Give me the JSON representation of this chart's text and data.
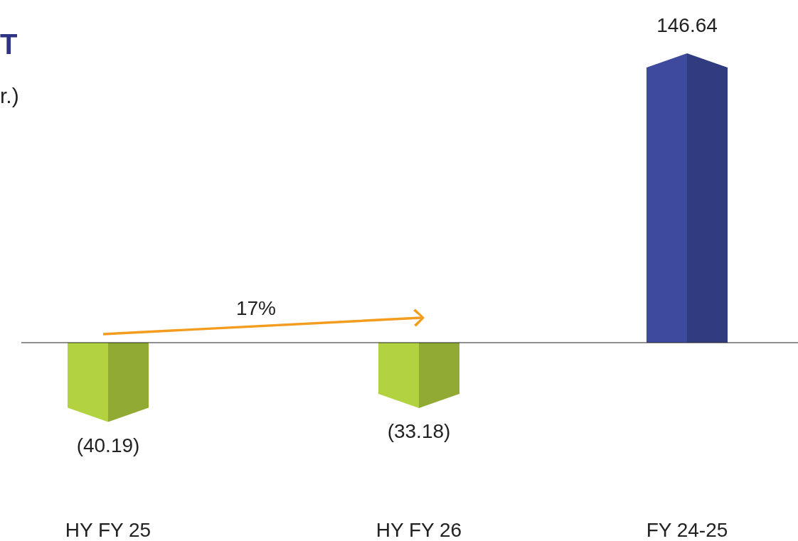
{
  "chart_data": {
    "type": "bar",
    "title": "T",
    "subtitle": "r.)",
    "categories": [
      "HY FY 25",
      "HY FY 26",
      "FY 24-25"
    ],
    "values": [
      -40.19,
      -33.18,
      146.64
    ],
    "colors": [
      "#b3d23f",
      "#b3d23f",
      "#3d4a9e"
    ],
    "value_labels": [
      "(40.19)",
      "(33.18)",
      "146.64"
    ],
    "annotations": [
      "17%"
    ]
  }
}
